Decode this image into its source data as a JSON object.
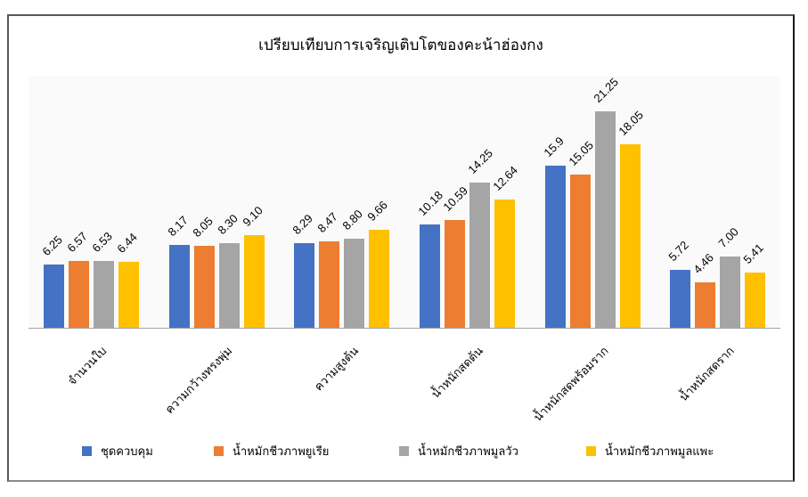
{
  "chart_data": {
    "type": "bar",
    "title": "เปรียบเทียบการเจริญเติบโตของคะน้าฮ่องกง",
    "xlabel": "",
    "ylabel": "",
    "ylim": [
      0,
      25
    ],
    "grid": false,
    "legend_position": "bottom",
    "categories": [
      "จำนวนใบ",
      "ความกว้างทรงพุ่ม",
      "ความสูงต้น",
      "น้ำหนักสดต้น",
      "น้ำหนักสดพร้อมราก",
      "น้ำหนักสดราก"
    ],
    "series": [
      {
        "name": "ชุดควบคุม",
        "color": "#4472C4",
        "values": [
          6.25,
          8.17,
          8.29,
          10.18,
          15.9,
          5.72
        ],
        "labels": [
          "6.25",
          "8.17",
          "8.29",
          "10.18",
          "15.9",
          "5.72"
        ]
      },
      {
        "name": "น้ำหมักชีวภาพยูเรีย",
        "color": "#ED7D31",
        "values": [
          6.57,
          8.05,
          8.47,
          10.59,
          15.05,
          4.46
        ],
        "labels": [
          "6.57",
          "8.05",
          "8.47",
          "10.59",
          "15.05",
          "4.46"
        ]
      },
      {
        "name": "น้ำหมักชีวภาพมูลวัว",
        "color": "#A5A5A5",
        "values": [
          6.53,
          8.3,
          8.8,
          14.25,
          21.25,
          7.0
        ],
        "labels": [
          "6.53",
          "8.30",
          "8.80",
          "14.25",
          "21.25",
          "7.00"
        ]
      },
      {
        "name": "น้ำหมักชีวภาพมูลแพะ",
        "color": "#FFC000",
        "values": [
          6.44,
          9.1,
          9.66,
          12.64,
          18.05,
          5.41
        ],
        "labels": [
          "6.44",
          "9.10",
          "9.66",
          "12.64",
          "18.05",
          "5.41"
        ]
      }
    ]
  },
  "legend": [
    {
      "label": "ชุดควบคุม",
      "color": "#4472C4"
    },
    {
      "label": "น้ำหมักชีวภาพยูเรีย",
      "color": "#ED7D31"
    },
    {
      "label": "น้ำหมักชีวภาพมูลวัว",
      "color": "#A5A5A5"
    },
    {
      "label": "น้ำหมักชีวภาพมูลแพะ",
      "color": "#FFC000"
    }
  ]
}
